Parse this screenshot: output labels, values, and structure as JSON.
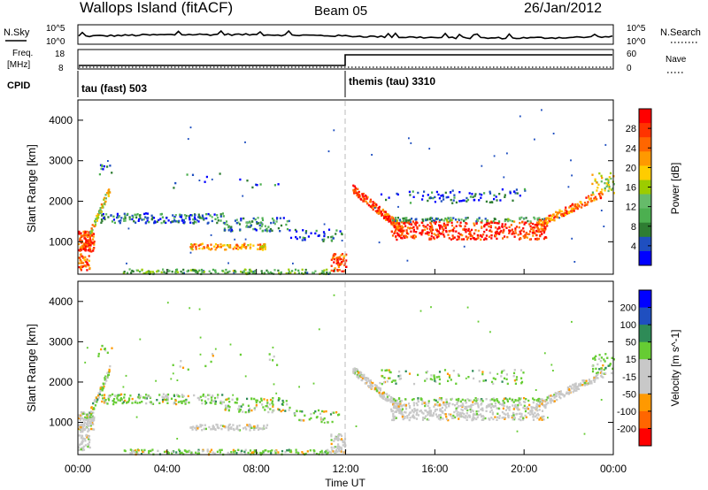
{
  "header": {
    "station": "Wallops Island (fitACF)",
    "beam": "Beam 05",
    "date": "26/Jan/2012"
  },
  "top_panels": {
    "nsky_label": "N.Sky",
    "nsearch_label": "N.Search",
    "noise_tick_top": "10^5",
    "noise_tick_bottom": "10^0",
    "freq_label_line1": "Freq.",
    "freq_label_line2": "[MHz]",
    "freq_tick_top": "18",
    "freq_tick_bottom": "8",
    "nave_label": "Nave",
    "nave_tick_top": "60",
    "nave_tick_bottom": "0",
    "cpid_label": "CPID",
    "cpid_1": "tau (fast) 503",
    "cpid_2": "themis (tau) 3310"
  },
  "x_axis": {
    "title": "Time UT",
    "ticks": [
      "00:00",
      "04:00",
      "08:00",
      "12:00",
      "16:00",
      "20:00",
      "00:00"
    ]
  },
  "colors": {
    "power_scale": [
      "#0000ff",
      "#1f4fc0",
      "#2e7d32",
      "#4caf50",
      "#66bb6a",
      "#9ccc00",
      "#ffcc00",
      "#ff9900",
      "#ff6600",
      "#ff3300",
      "#ff0000"
    ],
    "velocity_scale": [
      "#ff0000",
      "#ff6600",
      "#ff9900",
      "#c8c8c8",
      "#c8c8c8",
      "#66cc33",
      "#2e8b57",
      "#1f4fc0",
      "#0000ff"
    ]
  },
  "chart_data": [
    {
      "type": "heatmap",
      "name": "power",
      "xlabel": "",
      "ylabel": "Slant Range [km]",
      "yticks": [
        "1000",
        "2000",
        "3000",
        "4000"
      ],
      "ylim": [
        200,
        4500
      ],
      "xlim": [
        0,
        24
      ],
      "colorbar_label": "Power [dB]",
      "colorbar_ticks": [
        "4",
        "8",
        "12",
        "16",
        "20",
        "24",
        "28"
      ],
      "colorbar_range": [
        0,
        32
      ]
    },
    {
      "type": "heatmap",
      "name": "velocity",
      "xlabel": "",
      "ylabel": "Slant Range [km]",
      "yticks": [
        "1000",
        "2000",
        "3000",
        "4000"
      ],
      "ylim": [
        200,
        4500
      ],
      "xlim": [
        0,
        24
      ],
      "colorbar_label": "Velocity [m s^-1]",
      "colorbar_ticks": [
        "-200",
        "-100",
        "-50",
        "-15",
        "15",
        "50",
        "100",
        "200"
      ]
    },
    {
      "type": "line",
      "name": "cpid_frequency",
      "x": [
        0,
        12,
        12,
        24
      ],
      "freq_levels": [
        "low",
        "low",
        "high",
        "high"
      ]
    }
  ]
}
